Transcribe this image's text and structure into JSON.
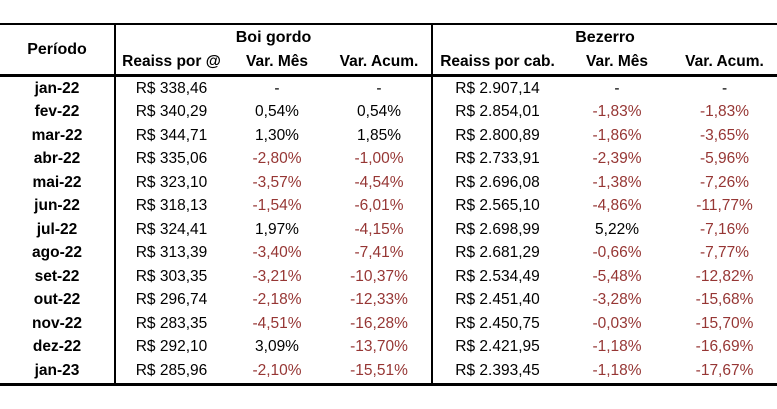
{
  "table": {
    "period_header": "Período",
    "groups": [
      {
        "label": "Boi gordo",
        "columns": [
          "Reaiss por @",
          "Var. Mês",
          "Var. Acum."
        ]
      },
      {
        "label": "Bezerro",
        "columns": [
          "Reaiss por cab.",
          "Var. Mês",
          "Var. Acum."
        ]
      }
    ],
    "rows": [
      {
        "period": "jan-22",
        "values": [
          "R$ 338,46",
          "-",
          "-",
          "R$ 2.907,14",
          "-",
          "-"
        ]
      },
      {
        "period": "fev-22",
        "values": [
          "R$ 340,29",
          "0,54%",
          "0,54%",
          "R$ 2.854,01",
          "-1,83%",
          "-1,83%"
        ]
      },
      {
        "period": "mar-22",
        "values": [
          "R$ 344,71",
          "1,30%",
          "1,85%",
          "R$ 2.800,89",
          "-1,86%",
          "-3,65%"
        ]
      },
      {
        "period": "abr-22",
        "values": [
          "R$ 335,06",
          "-2,80%",
          "-1,00%",
          "R$ 2.733,91",
          "-2,39%",
          "-5,96%"
        ]
      },
      {
        "period": "mai-22",
        "values": [
          "R$ 323,10",
          "-3,57%",
          "-4,54%",
          "R$ 2.696,08",
          "-1,38%",
          "-7,26%"
        ]
      },
      {
        "period": "jun-22",
        "values": [
          "R$ 318,13",
          "-1,54%",
          "-6,01%",
          "R$ 2.565,10",
          "-4,86%",
          "-11,77%"
        ]
      },
      {
        "period": "jul-22",
        "values": [
          "R$ 324,41",
          "1,97%",
          "-4,15%",
          "R$ 2.698,99",
          "5,22%",
          "-7,16%"
        ]
      },
      {
        "period": "ago-22",
        "values": [
          "R$ 313,39",
          "-3,40%",
          "-7,41%",
          "R$ 2.681,29",
          "-0,66%",
          "-7,77%"
        ]
      },
      {
        "period": "set-22",
        "values": [
          "R$ 303,35",
          "-3,21%",
          "-10,37%",
          "R$ 2.534,49",
          "-5,48%",
          "-12,82%"
        ]
      },
      {
        "period": "out-22",
        "values": [
          "R$ 296,74",
          "-2,18%",
          "-12,33%",
          "R$ 2.451,40",
          "-3,28%",
          "-15,68%"
        ]
      },
      {
        "period": "nov-22",
        "values": [
          "R$ 283,35",
          "-4,51%",
          "-16,28%",
          "R$ 2.450,75",
          "-0,03%",
          "-15,70%"
        ]
      },
      {
        "period": "dez-22",
        "values": [
          "R$ 292,10",
          "3,09%",
          "-13,70%",
          "R$ 2.421,95",
          "-1,18%",
          "-16,69%"
        ]
      },
      {
        "period": "jan-23",
        "values": [
          "R$ 285,96",
          "-2,10%",
          "-15,51%",
          "R$ 2.393,45",
          "-1,18%",
          "-17,67%"
        ]
      }
    ]
  },
  "colors": {
    "negative_value": "#963634",
    "text": "#000000",
    "border": "#000000",
    "background": "#ffffff"
  }
}
